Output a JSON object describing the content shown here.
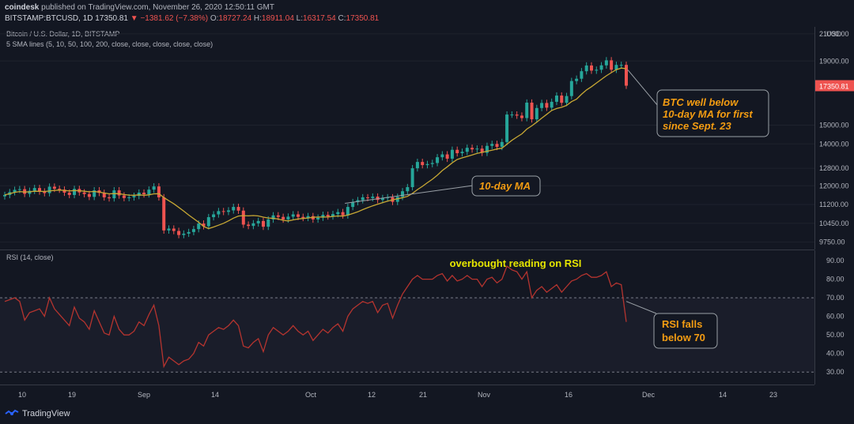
{
  "header": {
    "publisher": "coindesk",
    "published_text": "published on TradingView.com, November 26, 2020 12:50:11 GMT",
    "symbol": "BITSTAMP:BTCUSD, 1D",
    "last": "17350.81",
    "change": "▼ −1381.62 (−7.38%)",
    "ohlc_o": "O:",
    "ohlc_o_val": "18727.24",
    "ohlc_h": "H:",
    "ohlc_h_val": "18911.04",
    "ohlc_l": "L:",
    "ohlc_l_val": "16317.54",
    "ohlc_c": "C:",
    "ohlc_c_val": "17350.81"
  },
  "main_legend": {
    "title": "Bitcoin / U.S. Dollar, 1D, BITSTAMP",
    "sma": "5 SMA lines (5, 10, 50, 100, 200, close, close, close, close, close)"
  },
  "rsi_legend": {
    "title": "RSI (14, close)"
  },
  "footer": {
    "brand": "TradingView"
  },
  "colors": {
    "up": "#26a69a",
    "down": "#ef5350",
    "sma": "#c8a834",
    "rsi": "#b5342f",
    "annotation": "#f39c12",
    "annotation_rsi": "#e6e600"
  },
  "chart_data": [
    {
      "type": "candlestick",
      "title": "Bitcoin / U.S. Dollar, 1D, BITSTAMP",
      "currency": "USD",
      "price_ticks": [
        21000,
        19000,
        17350.81,
        15000,
        14000,
        12800,
        12000,
        11200,
        10450,
        9750
      ],
      "price_tick_labels": [
        "21000.00",
        "19000.00",
        "17350.81",
        "15000.00",
        "14000.00",
        "12800.00",
        "12000.00",
        "11200.00",
        "10450.00",
        "9750.00"
      ],
      "last_price_label": "17350.81",
      "scale": "log",
      "x_labels": [
        "10",
        "19",
        "Sep",
        "14",
        "Oct",
        "12",
        "21",
        "Nov",
        "16",
        "Dec",
        "14",
        "23"
      ],
      "candles_close": [
        11600,
        11720,
        11820,
        11850,
        11650,
        11780,
        11900,
        11750,
        11680,
        11960,
        11870,
        11830,
        11700,
        11600,
        11860,
        11710,
        11640,
        11520,
        11800,
        11690,
        11500,
        11460,
        11800,
        11580,
        11470,
        11500,
        11560,
        11700,
        11630,
        11830,
        11970,
        11500,
        10180,
        10250,
        10160,
        10010,
        10060,
        10120,
        10230,
        10440,
        10340,
        10690,
        10800,
        10930,
        10900,
        10960,
        11100,
        10950,
        10400,
        10350,
        10450,
        10540,
        10320,
        10600,
        10760,
        10700,
        10600,
        10710,
        10800,
        10700,
        10660,
        10730,
        10600,
        10670,
        10780,
        10720,
        10810,
        10890,
        10760,
        11100,
        11300,
        11380,
        11500,
        11470,
        11530,
        11390,
        11470,
        11500,
        11310,
        11520,
        11760,
        11940,
        12800,
        13100,
        12950,
        13000,
        13050,
        13330,
        13470,
        13260,
        13700,
        13530,
        13600,
        13800,
        13720,
        13760,
        13550,
        13900,
        14000,
        13850,
        14100,
        15600,
        15600,
        15540,
        15400,
        16300,
        15330,
        15980,
        16280,
        16000,
        16350,
        16730,
        16290,
        16700,
        17650,
        17800,
        18300,
        18690,
        18340,
        18400,
        18700,
        19050,
        18400,
        18730,
        18730,
        17350
      ],
      "sma10_visible": true,
      "annotations": [
        "BTC well below",
        "10-day MA for first",
        "since Sept. 23",
        "10-day MA"
      ]
    },
    {
      "type": "line",
      "title": "RSI (14, close)",
      "y_ticks": [
        90,
        80,
        70,
        60,
        50,
        40,
        30
      ],
      "y_tick_labels": [
        "90.00",
        "80.00",
        "70.00",
        "60.00",
        "50.00",
        "40.00",
        "30.00"
      ],
      "ylim": [
        25,
        93
      ],
      "band": [
        30,
        70
      ],
      "values": [
        68,
        69,
        70,
        68,
        58,
        62,
        63,
        64,
        60,
        70,
        64,
        61,
        58,
        55,
        65,
        59,
        57,
        53,
        63,
        57,
        51,
        50,
        60,
        53,
        50,
        50,
        52,
        57,
        55,
        61,
        66,
        55,
        33,
        38,
        36,
        34,
        36,
        37,
        40,
        46,
        44,
        50,
        52,
        54,
        53,
        55,
        58,
        55,
        44,
        43,
        46,
        48,
        41,
        50,
        54,
        52,
        50,
        52,
        55,
        52,
        50,
        52,
        47,
        50,
        53,
        51,
        54,
        56,
        52,
        60,
        64,
        66,
        68,
        67,
        68,
        62,
        66,
        67,
        59,
        66,
        72,
        76,
        80,
        82,
        80,
        80,
        80,
        82,
        83,
        79,
        82,
        79,
        80,
        82,
        80,
        80,
        76,
        80,
        81,
        78,
        80,
        87,
        85,
        84,
        80,
        84,
        70,
        74,
        76,
        73,
        75,
        77,
        73,
        76,
        79,
        80,
        82,
        83,
        81,
        81,
        82,
        84,
        76,
        78,
        77,
        57
      ],
      "annotations": [
        "overbought reading on RSI",
        "RSI falls",
        "below 70"
      ]
    }
  ]
}
